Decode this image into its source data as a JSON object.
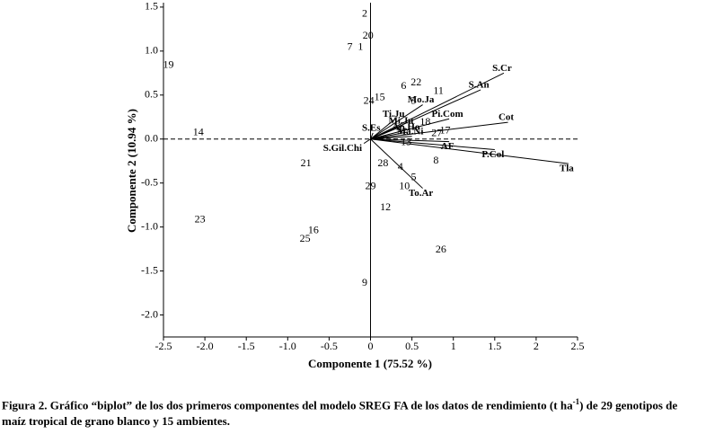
{
  "chart_data": {
    "type": "biplot",
    "x_label": "Componente 1 (75.52 %)",
    "y_label": "Componente 2 (10.94 %)",
    "caption": [
      "Figura 2. Gráfico “biplot” de los dos primeros componentes del modelo SREG FA de los datos de rendimiento (t ha",
      "-1",
      ") de 29 genotipos de maíz tropical de grano blanco y 15 ambientes."
    ],
    "xlim": [
      -2.5,
      2.5
    ],
    "ylim": [
      -2.25,
      1.55
    ],
    "xticks": [
      -2.5,
      {
        "value": -2,
        "label": "-2.0"
      },
      -1.5,
      {
        "value": -1,
        "label": "-1.0"
      },
      -0.5,
      0,
      0.5,
      1,
      1.5,
      2,
      2.5
    ],
    "yticks": [
      1.5,
      {
        "value": 1,
        "label": "1.0"
      },
      0.5,
      {
        "value": 0,
        "label": "0.0"
      },
      -0.5,
      {
        "value": -1,
        "label": "-1.0"
      },
      -1.5,
      {
        "value": -2,
        "label": "-2.0"
      }
    ],
    "points": {
      "labels": [
        "2",
        "20",
        "7",
        "1",
        "19",
        "6",
        "22",
        "11",
        "24",
        "15",
        "3",
        "14",
        "18",
        "27",
        "17",
        "13",
        "21",
        "28",
        "4",
        "8",
        "5",
        "29",
        "10",
        "12",
        "23",
        "16",
        "25",
        "26",
        "9"
      ],
      "x": [
        -0.07,
        -0.03,
        -0.25,
        -0.12,
        -2.44,
        0.4,
        0.55,
        0.82,
        -0.02,
        0.11,
        0.52,
        -2.08,
        0.66,
        0.8,
        0.9,
        0.43,
        -0.78,
        0.15,
        0.36,
        0.79,
        0.52,
        0,
        0.41,
        0.18,
        -2.06,
        -0.69,
        -0.79,
        0.85,
        -0.07
      ],
      "y": [
        1.42,
        1.17,
        1.04,
        1.04,
        0.84,
        0.6,
        0.64,
        0.54,
        0.43,
        0.47,
        0.43,
        0.07,
        0.19,
        0.06,
        0.09,
        -0.04,
        -0.28,
        -0.28,
        -0.32,
        -0.25,
        -0.44,
        -0.54,
        -0.54,
        -0.78,
        -0.92,
        -1.04,
        -1.14,
        -1.26,
        -1.64
      ]
    },
    "vectors": {
      "labels": [
        "S.Cr",
        "S.An",
        "Mo.Ja",
        "Cot",
        "Pi.Com",
        "Tla",
        "P.Col",
        "AF",
        "To.Ar",
        "S.Gil.Chi",
        "S.Es",
        "Ti.Ju",
        "Mi.Ju",
        "Ap.Ho",
        "Ma.Ni"
      ],
      "x": [
        1.61,
        1.33,
        0.63,
        1.66,
        0.95,
        2.39,
        1.5,
        0.95,
        0.63,
        -0.08,
        0.03,
        0.3,
        0.39,
        0.45,
        0.5
      ],
      "y": [
        0.75,
        0.56,
        0.39,
        0.19,
        0.23,
        -0.28,
        -0.12,
        -0.03,
        -0.56,
        -0.05,
        0.07,
        0.23,
        0.15,
        0.08,
        0.03
      ]
    },
    "color": "#000000"
  }
}
